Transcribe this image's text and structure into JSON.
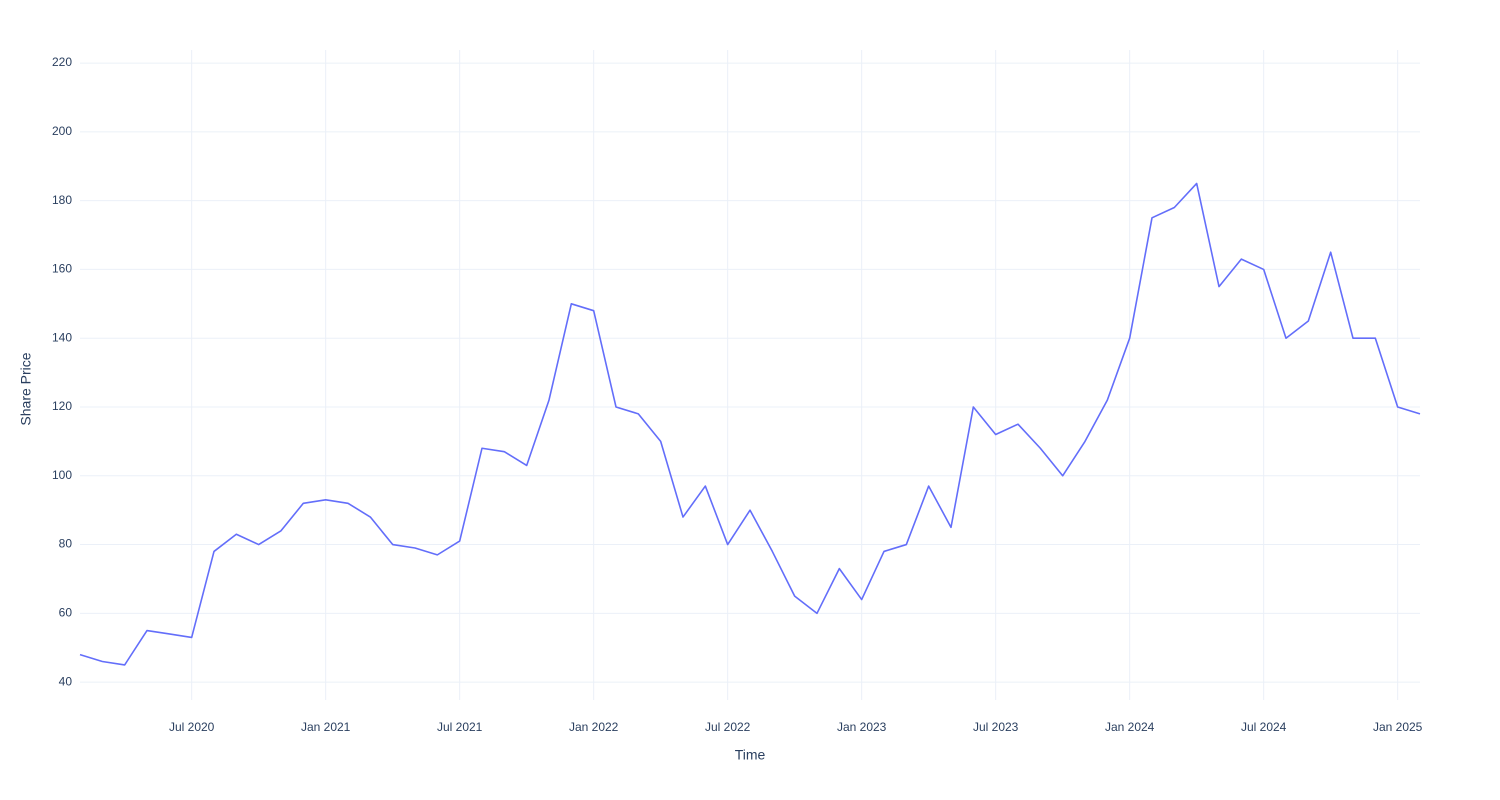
{
  "chart_data": {
    "type": "line",
    "x_label": "Time",
    "y_label": "Share Price",
    "x": [
      "2020-02",
      "2020-03",
      "2020-04",
      "2020-05",
      "2020-06",
      "2020-07",
      "2020-08",
      "2020-09",
      "2020-10",
      "2020-11",
      "2020-12",
      "2021-01",
      "2021-02",
      "2021-03",
      "2021-04",
      "2021-05",
      "2021-06",
      "2021-07",
      "2021-08",
      "2021-09",
      "2021-10",
      "2021-11",
      "2021-12",
      "2022-01",
      "2022-02",
      "2022-03",
      "2022-04",
      "2022-05",
      "2022-06",
      "2022-07",
      "2022-08",
      "2022-09",
      "2022-10",
      "2022-11",
      "2022-12",
      "2023-01",
      "2023-02",
      "2023-03",
      "2023-04",
      "2023-05",
      "2023-06",
      "2023-07",
      "2023-08",
      "2023-09",
      "2023-10",
      "2023-11",
      "2023-12",
      "2024-01",
      "2024-02",
      "2024-03",
      "2024-04",
      "2024-05",
      "2024-06",
      "2024-07",
      "2024-08",
      "2024-09",
      "2024-10",
      "2024-11",
      "2024-12",
      "2025-01",
      "2025-02"
    ],
    "series": [
      {
        "name": "Share Price",
        "color": "#636efa",
        "values": [
          48,
          46,
          45,
          55,
          54,
          53,
          78,
          83,
          80,
          84,
          92,
          93,
          92,
          88,
          80,
          79,
          77,
          81,
          108,
          107,
          103,
          122,
          150,
          148,
          120,
          118,
          110,
          88,
          97,
          80,
          90,
          78,
          65,
          60,
          73,
          64,
          78,
          80,
          97,
          85,
          120,
          112,
          115,
          108,
          100,
          110,
          122,
          140,
          175,
          178,
          185,
          155,
          163,
          160,
          140,
          145,
          165,
          140,
          140,
          120,
          118
        ]
      }
    ],
    "xlim": [
      "2020-02",
      "2025-02"
    ],
    "xticks": [
      {
        "value": "2020-07",
        "label": "Jul 2020"
      },
      {
        "value": "2021-01",
        "label": "Jan 2021"
      },
      {
        "value": "2021-07",
        "label": "Jul 2021"
      },
      {
        "value": "2022-01",
        "label": "Jan 2022"
      },
      {
        "value": "2022-07",
        "label": "Jul 2022"
      },
      {
        "value": "2023-01",
        "label": "Jan 2023"
      },
      {
        "value": "2023-07",
        "label": "Jul 2023"
      },
      {
        "value": "2024-01",
        "label": "Jan 2024"
      },
      {
        "value": "2024-07",
        "label": "Jul 2024"
      },
      {
        "value": "2025-01",
        "label": "Jan 2025"
      }
    ],
    "ylim": [
      34.8,
      223.8
    ],
    "yticks": [
      40,
      60,
      80,
      100,
      120,
      140,
      160,
      180,
      200,
      220
    ],
    "grid": true
  }
}
